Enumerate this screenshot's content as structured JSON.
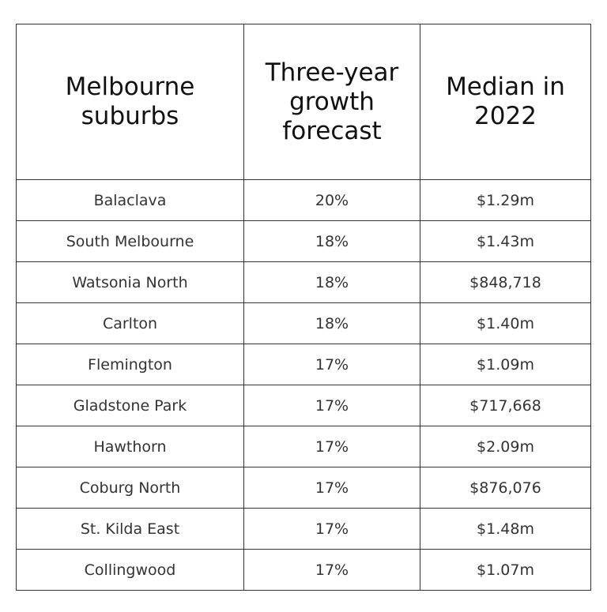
{
  "table": {
    "headers": [
      "Melbourne suburbs",
      "Three-year growth forecast",
      "Median in 2022"
    ],
    "rows": [
      [
        "Balaclava",
        "20%",
        "$1.29m"
      ],
      [
        "South Melbourne",
        "18%",
        "$1.43m"
      ],
      [
        "Watsonia North",
        "18%",
        "$848,718"
      ],
      [
        "Carlton",
        "18%",
        "$1.40m"
      ],
      [
        "Flemington",
        "17%",
        "$1.09m"
      ],
      [
        "Gladstone Park",
        "17%",
        "$717,668"
      ],
      [
        "Hawthorn",
        "17%",
        "$2.09m"
      ],
      [
        "Coburg North",
        "17%",
        "$876,076"
      ],
      [
        "St. Kilda East",
        "17%",
        "$1.48m"
      ],
      [
        "Collingwood",
        "17%",
        "$1.07m"
      ]
    ]
  }
}
